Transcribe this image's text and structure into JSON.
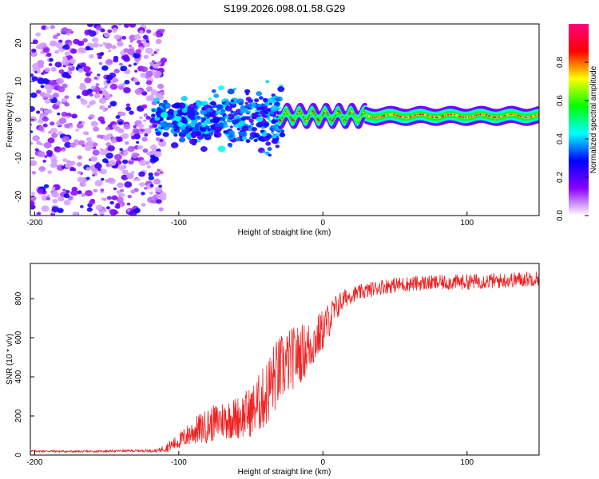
{
  "title": "S199.2026.098.01.58.G29",
  "chart_data": [
    {
      "type": "heatmap",
      "xlabel": "Height of straight line (km)",
      "ylabel": "Frequency (Hz)",
      "xlim": [
        -203,
        150
      ],
      "ylim": [
        -25,
        25
      ],
      "xticks": [
        -200,
        -100,
        0,
        100
      ],
      "yticks": [
        -20,
        -10,
        0,
        10,
        20
      ],
      "colorbar": {
        "label": "Normalized spectral amplitude",
        "range": [
          0,
          1
        ],
        "ticks": [
          0.0,
          0.2,
          0.4,
          0.6,
          0.8
        ],
        "tick_labels": [
          "0.0",
          "0.2",
          "0.4",
          "0.6",
          "0.8"
        ],
        "colormap": [
          "#ffffff",
          "#8b00ff",
          "#0000ff",
          "#00ffff",
          "#00ff00",
          "#ffff00",
          "#ff0000",
          "#ff0080"
        ]
      },
      "regions": [
        {
          "name": "noise",
          "x_range": [
            -203,
            -110
          ],
          "freq_range": [
            -25,
            25
          ],
          "amplitude": [
            0.05,
            0.3
          ]
        },
        {
          "name": "transition",
          "x_range": [
            -118,
            -28
          ],
          "freq_range": [
            -16,
            11
          ],
          "amplitude": [
            0.2,
            0.45
          ]
        },
        {
          "name": "signal",
          "x_range": [
            -30,
            150
          ],
          "center_freq": 1.0,
          "amplitude": [
            0.6,
            1.0
          ]
        }
      ]
    },
    {
      "type": "line",
      "xlabel": "Height of straight line (km)",
      "ylabel": "SNR (10 * v/v)",
      "xlim": [
        -203,
        150
      ],
      "ylim": [
        0,
        980
      ],
      "xticks": [
        -200,
        -100,
        0,
        100
      ],
      "yticks": [
        0,
        200,
        400,
        600,
        800
      ],
      "series": [
        {
          "name": "SNR",
          "color": "#ee2222",
          "x": [
            -203,
            -190,
            -170,
            -150,
            -130,
            -115,
            -108,
            -100,
            -90,
            -80,
            -70,
            -60,
            -50,
            -45,
            -40,
            -35,
            -30,
            -25,
            -20,
            -15,
            -10,
            -5,
            0,
            5,
            10,
            15,
            20,
            30,
            40,
            50,
            60,
            70,
            80,
            90,
            100,
            110,
            120,
            130,
            140,
            150
          ],
          "y": [
            20,
            20,
            18,
            20,
            22,
            22,
            40,
            70,
            120,
            150,
            180,
            190,
            220,
            260,
            300,
            380,
            430,
            470,
            500,
            520,
            550,
            590,
            640,
            700,
            760,
            800,
            820,
            840,
            860,
            870,
            875,
            880,
            880,
            885,
            885,
            890,
            890,
            895,
            900,
            905
          ],
          "noise_amplitude": [
            5,
            5,
            5,
            5,
            6,
            8,
            25,
            40,
            70,
            90,
            100,
            110,
            130,
            150,
            170,
            190,
            180,
            170,
            160,
            150,
            140,
            120,
            110,
            90,
            70,
            50,
            40,
            40,
            40,
            40,
            40,
            40,
            40,
            40,
            40,
            40,
            40,
            40,
            40,
            40
          ]
        }
      ]
    }
  ]
}
